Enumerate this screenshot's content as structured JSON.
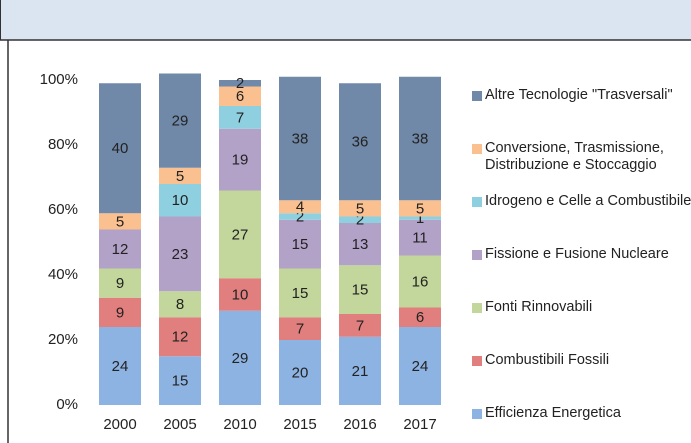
{
  "chart_data": {
    "type": "stacked_bar",
    "categories": [
      "2000",
      "2005",
      "2010",
      "2015",
      "2016",
      "2017"
    ],
    "series": [
      {
        "name": "Efficienza Energetica",
        "color": "#8db3e2",
        "values": [
          24,
          15,
          29,
          20,
          21,
          24
        ]
      },
      {
        "name": "Combustibili Fossili",
        "color": "#e07f7d",
        "values": [
          9,
          12,
          10,
          7,
          7,
          6
        ]
      },
      {
        "name": "Fonti Rinnovabili",
        "color": "#c3d69b",
        "values": [
          9,
          8,
          27,
          15,
          15,
          16
        ]
      },
      {
        "name": "Fissione e Fusione Nucleare",
        "color": "#b3a2c7",
        "values": [
          12,
          23,
          19,
          15,
          13,
          11
        ]
      },
      {
        "name": "Idrogeno e Celle a Combustibile",
        "color": "#8fd0e0",
        "values": [
          0,
          10,
          7,
          2,
          2,
          1
        ]
      },
      {
        "name": "Conversione, Trasmissione, Distribuzione e Stoccaggio",
        "color": "#fac090",
        "values": [
          5,
          5,
          6,
          4,
          5,
          5
        ]
      },
      {
        "name": "Altre Tecnologie \"Trasversali\"",
        "color": "#7089a8",
        "values": [
          40,
          29,
          2,
          38,
          36,
          38
        ]
      }
    ],
    "ylim": [
      0,
      100
    ],
    "yticks": [
      {
        "value": 0,
        "label": "0%"
      },
      {
        "value": 20,
        "label": "20%"
      },
      {
        "value": 40,
        "label": "40%"
      },
      {
        "value": 60,
        "label": "60%"
      },
      {
        "value": 80,
        "label": "80%"
      },
      {
        "value": 100,
        "label": "100%"
      }
    ],
    "legend": "right"
  }
}
